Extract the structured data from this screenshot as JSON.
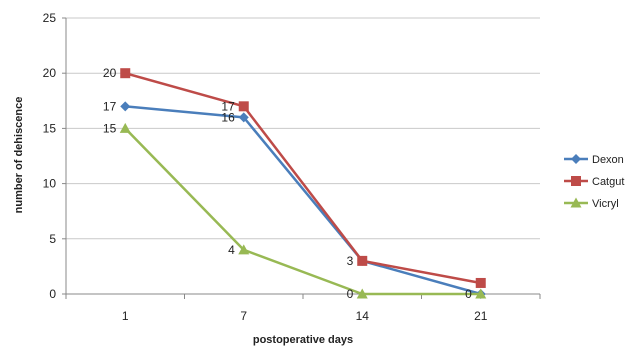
{
  "chart_data": {
    "type": "line",
    "title": "",
    "xlabel": "postoperative days",
    "ylabel": "number of dehiscence",
    "categories": [
      "1",
      "7",
      "14",
      "21"
    ],
    "ylim": [
      0,
      25
    ],
    "yticks": [
      0,
      5,
      10,
      15,
      20,
      25
    ],
    "grid": true,
    "legend_position": "right",
    "series": [
      {
        "name": "Dexon",
        "values": [
          17,
          16,
          3,
          0
        ],
        "color": "#4a7ebb",
        "marker": "diamond",
        "labels": [
          "17",
          "16",
          "",
          "0"
        ]
      },
      {
        "name": "Catgut",
        "values": [
          20,
          17,
          3,
          1
        ],
        "color": "#be4b48",
        "marker": "square",
        "labels": [
          "20",
          "17",
          "3",
          ""
        ]
      },
      {
        "name": "Vicryl",
        "values": [
          15,
          4,
          0,
          0
        ],
        "color": "#98b954",
        "marker": "triangle",
        "labels": [
          "15",
          "4",
          "0",
          ""
        ]
      }
    ]
  }
}
